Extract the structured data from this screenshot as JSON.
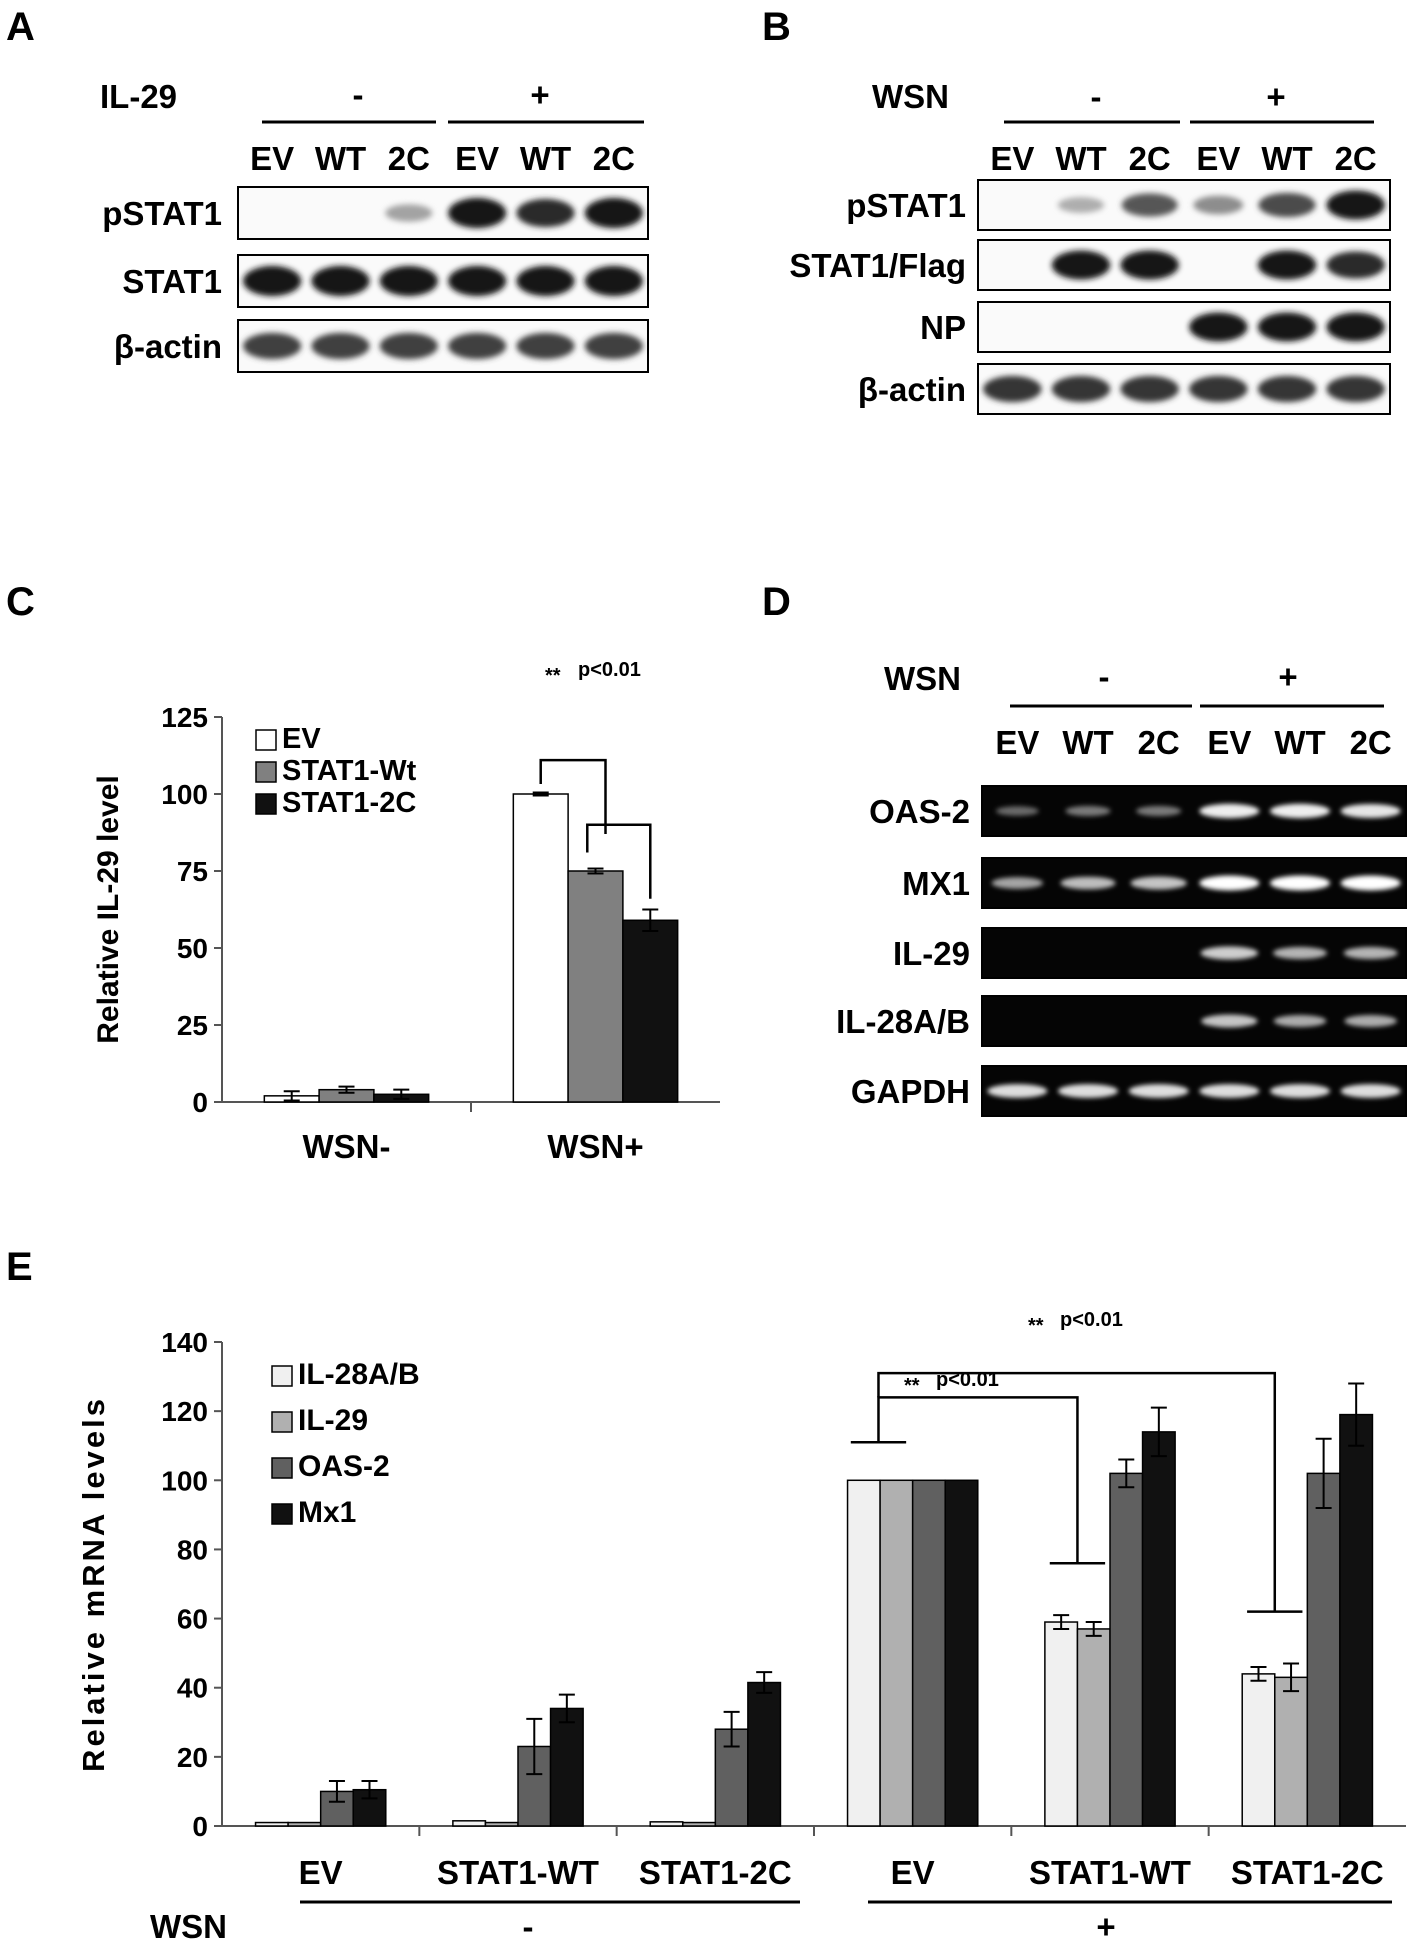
{
  "panels": {
    "A": {
      "letter": "A",
      "treatment": "IL-29",
      "signs": [
        "-",
        "+"
      ],
      "lanes": [
        "EV",
        "WT",
        "2C",
        "EV",
        "WT",
        "2C"
      ],
      "rows": [
        "pSTAT1",
        "STAT1",
        "β-actin"
      ],
      "bands": [
        [
          0,
          0,
          0.35,
          1,
          0.9,
          1
        ],
        [
          1,
          1,
          1,
          1,
          1,
          1
        ],
        [
          0.8,
          0.8,
          0.8,
          0.8,
          0.8,
          0.8
        ]
      ]
    },
    "B": {
      "letter": "B",
      "treatment": "WSN",
      "signs": [
        "-",
        "+"
      ],
      "lanes": [
        "EV",
        "WT",
        "2C",
        "EV",
        "WT",
        "2C"
      ],
      "rows": [
        "pSTAT1",
        "STAT1/Flag",
        "NP",
        "β-actin"
      ],
      "bands": [
        [
          0,
          0.3,
          0.7,
          0.45,
          0.75,
          1
        ],
        [
          0,
          1,
          1,
          0,
          1,
          0.9
        ],
        [
          0,
          0,
          0,
          1,
          1,
          1
        ],
        [
          0.85,
          0.85,
          0.85,
          0.85,
          0.85,
          0.85
        ]
      ]
    },
    "C": {
      "letter": "C",
      "significance": "p<0.01",
      "stars": "**"
    },
    "D": {
      "letter": "D",
      "treatment": "WSN",
      "signs": [
        "-",
        "+"
      ],
      "lanes": [
        "EV",
        "WT",
        "2C",
        "EV",
        "WT",
        "2C"
      ],
      "rows": [
        "OAS-2",
        "MX1",
        "IL-29",
        "IL-28A/B",
        "GAPDH"
      ],
      "bands": [
        [
          0.1,
          0.2,
          0.2,
          0.9,
          0.9,
          0.85
        ],
        [
          0.45,
          0.6,
          0.65,
          1,
          1,
          1
        ],
        [
          0,
          0,
          0,
          0.7,
          0.55,
          0.55
        ],
        [
          0,
          0,
          0,
          0.65,
          0.5,
          0.5
        ],
        [
          0.8,
          0.8,
          0.8,
          0.8,
          0.8,
          0.8
        ]
      ]
    },
    "E": {
      "letter": "E",
      "significance": "p<0.01",
      "stars": "**",
      "treatment": "WSN",
      "signs": [
        "-",
        "+"
      ]
    }
  },
  "chart_data": [
    {
      "type": "bar",
      "panel": "C",
      "categories": [
        "WSN-",
        "WSN+"
      ],
      "ylabel": "Relative IL-29 level",
      "ylim": [
        0,
        125
      ],
      "yticks": [
        0,
        25,
        50,
        75,
        100,
        125
      ],
      "legend": "top-left",
      "series": [
        {
          "name": "EV",
          "color": "#ffffff",
          "values": [
            2,
            100
          ],
          "errors": [
            1.5,
            0.5
          ]
        },
        {
          "name": "STAT1-Wt",
          "color": "#808080",
          "values": [
            4,
            75
          ],
          "errors": [
            1,
            0.8
          ]
        },
        {
          "name": "STAT1-2C",
          "color": "#111111",
          "values": [
            2.5,
            59
          ],
          "errors": [
            1.5,
            3.5
          ]
        }
      ]
    },
    {
      "type": "bar",
      "panel": "E",
      "categories": [
        "EV",
        "STAT1-WT",
        "STAT1-2C",
        "EV",
        "STAT1-WT",
        "STAT1-2C"
      ],
      "ylabel": "Relative mRNA levels",
      "ylim": [
        0,
        140
      ],
      "yticks": [
        0,
        20,
        40,
        60,
        80,
        100,
        120,
        140
      ],
      "legend": "top-left",
      "series": [
        {
          "name": "IL-28A/B",
          "color": "#f0f0f0",
          "values": [
            1,
            1.5,
            1.2,
            100,
            59,
            44
          ],
          "errors": [
            0,
            0,
            0,
            0,
            2,
            2
          ]
        },
        {
          "name": "IL-29",
          "color": "#b0b0b0",
          "values": [
            1,
            1,
            1,
            100,
            57,
            43
          ],
          "errors": [
            0,
            0,
            0,
            0,
            2,
            4
          ]
        },
        {
          "name": "OAS-2",
          "color": "#606060",
          "values": [
            10,
            23,
            28,
            100,
            102,
            102
          ],
          "errors": [
            3,
            8,
            5,
            0,
            4,
            10
          ]
        },
        {
          "name": "Mx1",
          "color": "#111111",
          "values": [
            10.5,
            34,
            41.5,
            100,
            114,
            119
          ],
          "errors": [
            2.5,
            4,
            3,
            0,
            7,
            9
          ]
        }
      ]
    }
  ]
}
